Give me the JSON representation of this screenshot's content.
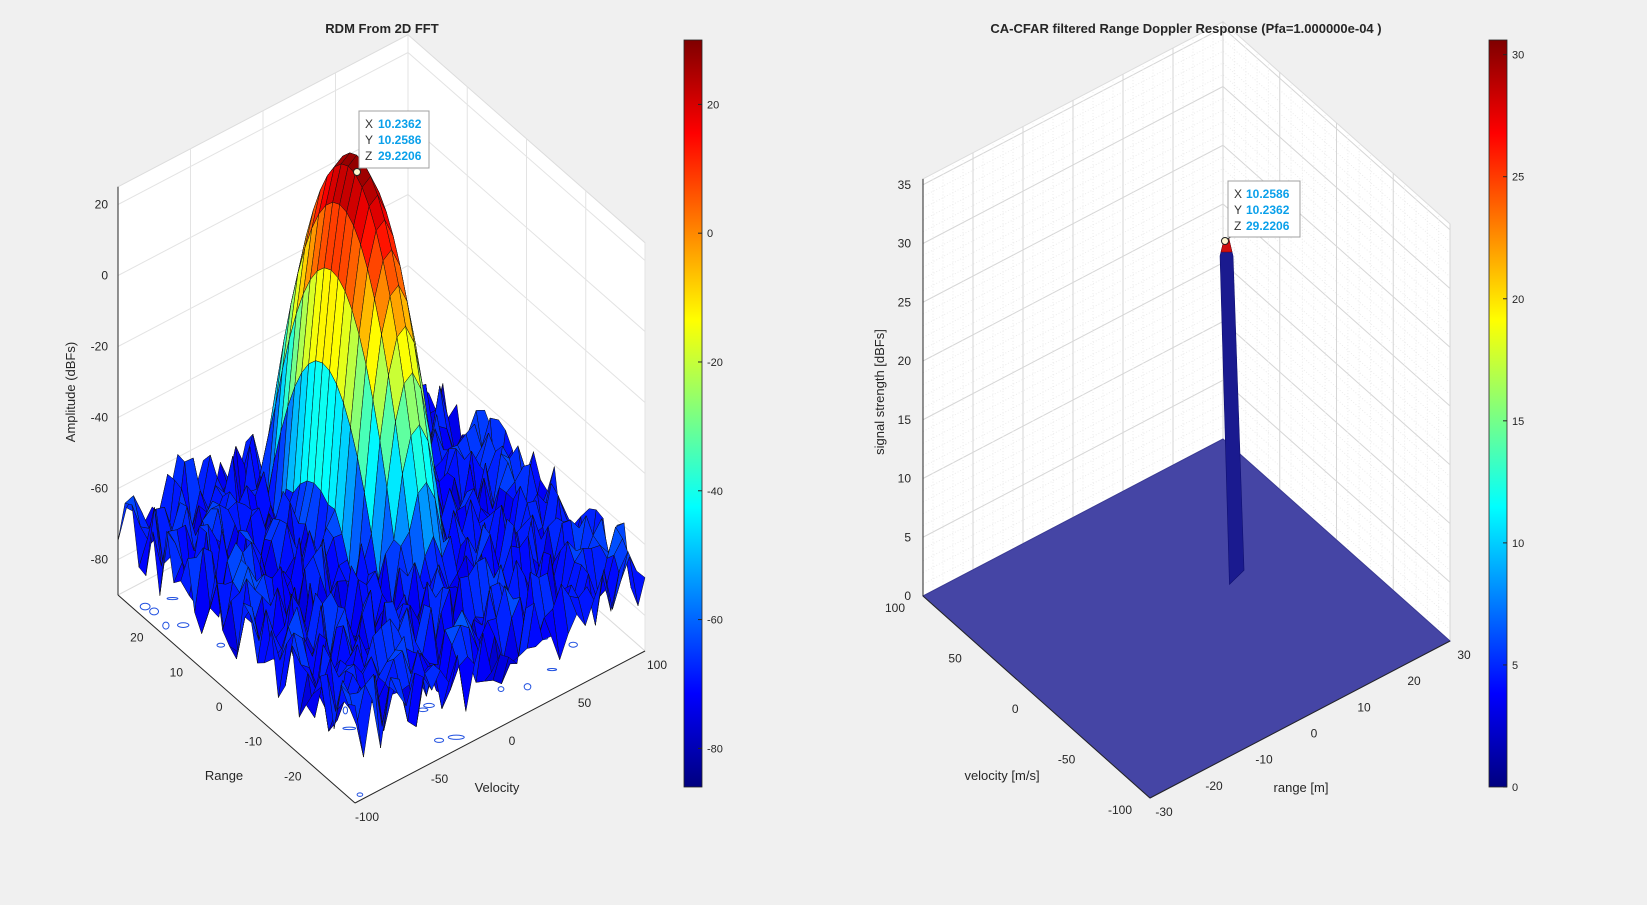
{
  "figure": {
    "background": "#f0f0f0"
  },
  "chart_data": [
    {
      "type": "surface",
      "title": "RDM From 2D FFT",
      "xlabel": "Velocity",
      "ylabel": "Range",
      "zlabel": "Amplitude (dBFs)",
      "xlim": [
        -100,
        100
      ],
      "ylim": [
        -30,
        30
      ],
      "zlim": [
        -90,
        30
      ],
      "xticks": [
        "-100",
        "-50",
        "0",
        "50",
        "100"
      ],
      "yticks": [
        "-20",
        "-10",
        "0",
        "10",
        "20"
      ],
      "zticks": [
        "-80",
        "-60",
        "-40",
        "-20",
        "0",
        "20"
      ],
      "grid": true,
      "colormap": "jet",
      "colorbar": {
        "min": -86,
        "max": 30,
        "ticks": [
          "-80",
          "-60",
          "-40",
          "-20",
          "0",
          "20"
        ]
      },
      "peak": {
        "x": 10.2362,
        "y": 10.2586,
        "z": 29.2206
      },
      "noise_floor_db": -70,
      "datatip": {
        "x_label": "X",
        "x_value": "10.2362",
        "y_label": "Y",
        "y_value": "10.2586",
        "z_label": "Z",
        "z_value": "29.2206"
      },
      "contour_projection": true
    },
    {
      "type": "surface",
      "title": "CA-CFAR filtered Range Doppler Response (Pfa=1.000000e-04 )",
      "xlabel": "velocity [m/s]",
      "ylabel": "range [m]",
      "zlabel": "signal strength [dBFs]",
      "xlim": [
        -100,
        100
      ],
      "ylim": [
        -30,
        30
      ],
      "zlim": [
        0,
        35
      ],
      "xticks": [
        "-100",
        "-50",
        "0",
        "50",
        "100"
      ],
      "yticks": [
        "-30",
        "-20",
        "-10",
        "0",
        "10",
        "20",
        "30"
      ],
      "zticks": [
        "0",
        "5",
        "10",
        "15",
        "20",
        "25",
        "30",
        "35"
      ],
      "grid": true,
      "minor_grid": true,
      "colormap": "jet",
      "colorbar": {
        "min": 0,
        "max": 30.6,
        "ticks": [
          "0",
          "5",
          "10",
          "15",
          "20",
          "25",
          "30"
        ]
      },
      "peak": {
        "x": 10.2586,
        "y": 10.2362,
        "z": 29.2206
      },
      "floor_value": 0,
      "datatip": {
        "x_label": "X",
        "x_value": "10.2586",
        "y_label": "Y",
        "y_value": "10.2362",
        "z_label": "Z",
        "z_value": "29.2206"
      }
    }
  ]
}
